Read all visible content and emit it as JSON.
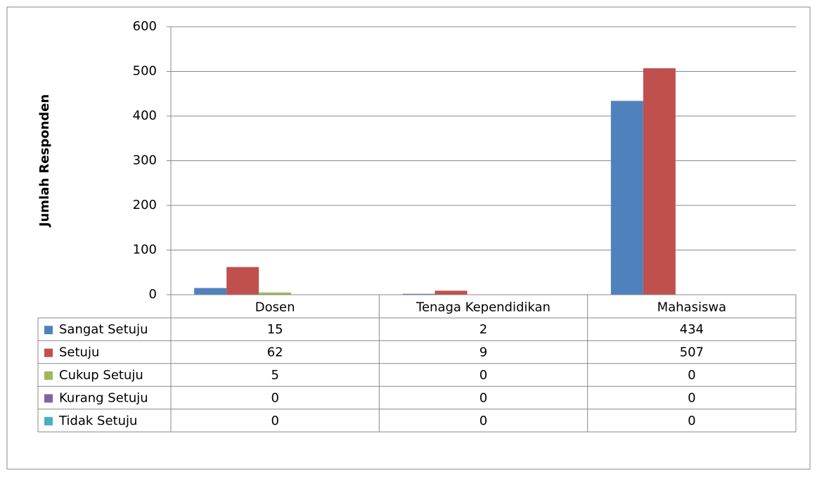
{
  "chart_data": {
    "type": "bar",
    "y_label": "Jumlah Responden",
    "categories": [
      "Dosen",
      "Tenaga Kependidikan",
      "Mahasiswa"
    ],
    "series": [
      {
        "name": "Sangat Setuju",
        "color": "#4f81bd",
        "values": [
          15,
          2,
          434
        ]
      },
      {
        "name": "Setuju",
        "color": "#c0504d",
        "values": [
          62,
          9,
          507
        ]
      },
      {
        "name": "Cukup Setuju",
        "color": "#9bbb59",
        "values": [
          5,
          0,
          0
        ]
      },
      {
        "name": "Kurang Setuju",
        "color": "#8064a2",
        "values": [
          0,
          0,
          0
        ]
      },
      {
        "name": "Tidak Setuju",
        "color": "#4bacc6",
        "values": [
          0,
          0,
          0
        ]
      }
    ],
    "ylim": [
      0,
      600
    ],
    "yticks": [
      0,
      100,
      200,
      300,
      400,
      500,
      600
    ],
    "grid": true
  }
}
